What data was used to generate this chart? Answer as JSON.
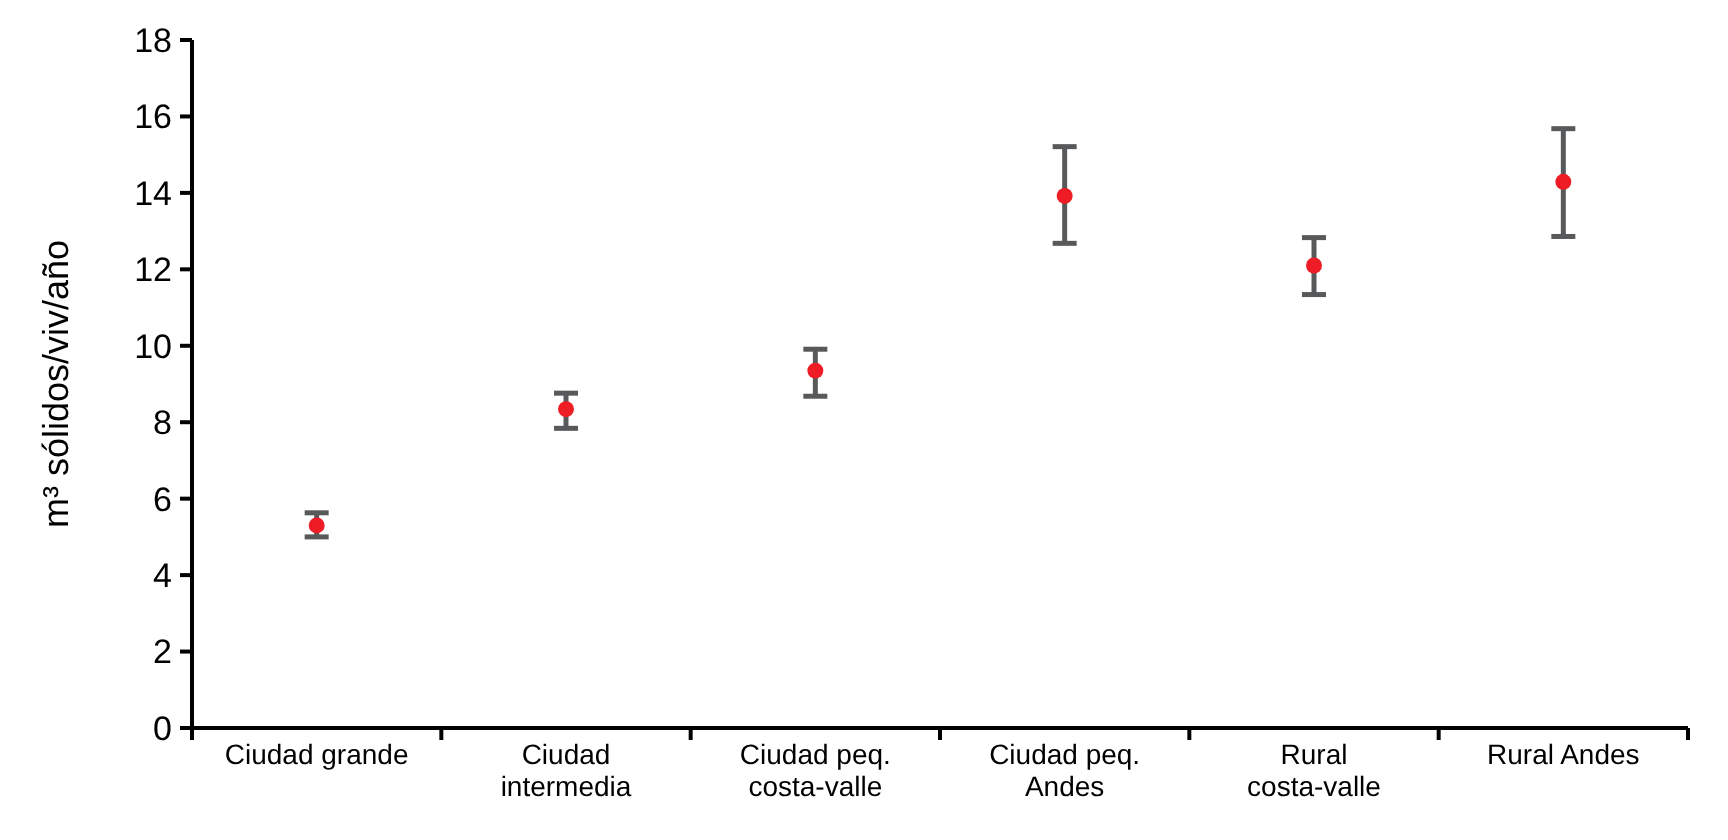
{
  "chart_data": {
    "type": "scatter",
    "ylabel": "m³ sólidos/viv/año",
    "categories": [
      "Ciudad grande",
      "Ciudad intermedia",
      "Ciudad peq. costa-valle",
      "Ciudad peq. Andes",
      "Rural costa-valle",
      "Rural Andes"
    ],
    "values": [
      5.3,
      8.34,
      9.35,
      13.92,
      12.1,
      14.29
    ],
    "errors": [
      [
        5.0,
        5.63
      ],
      [
        7.84,
        8.76
      ],
      [
        8.68,
        9.91
      ],
      [
        12.68,
        15.21
      ],
      [
        11.34,
        12.83
      ],
      [
        12.86,
        15.68
      ]
    ],
    "color": "#ee1c25",
    "marker": "circle",
    "ylim": [
      0,
      18
    ],
    "yticks": [
      0,
      2,
      4,
      6,
      8,
      10,
      12,
      14,
      16,
      18
    ],
    "grid": false
  }
}
